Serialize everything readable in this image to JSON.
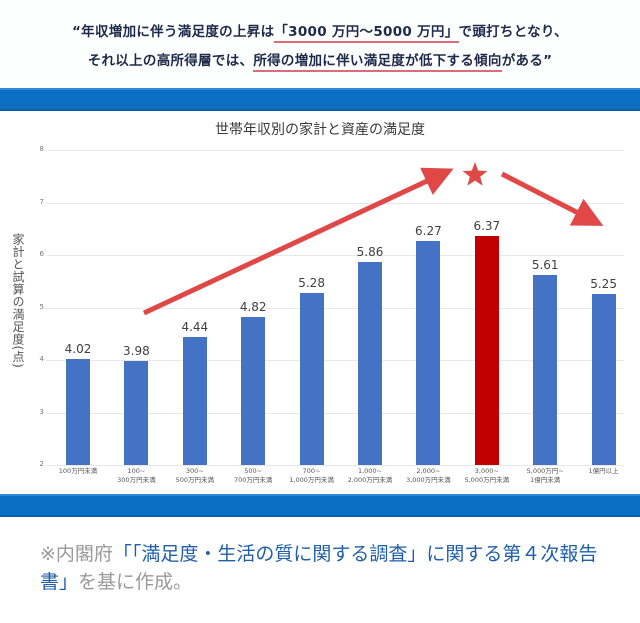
{
  "headline": {
    "line1_pre": "“年収増加に伴う満足度の上昇は",
    "line1_ul": "「3000 万円～5000 万円」",
    "line1_post": "で頭打ちとなり、",
    "line2_pre": "それ以上の高所得層では、",
    "line2_ul": "所得の増加に伴い満足度が低下する傾向",
    "line2_post": "がある”"
  },
  "colors": {
    "band": "#0a6fc2",
    "bar": "#4472c4",
    "highlight_bar": "#c00000",
    "arrow": "#e04848",
    "underline": "#e06a78"
  },
  "chart_data": {
    "type": "bar",
    "title": "世帯年収別の家計と資産の満足度",
    "xlabel": "",
    "ylabel": "家計と試算の満足度(点)",
    "ylim": [
      2,
      8
    ],
    "yticks": [
      "8",
      "7",
      "6",
      "5",
      "4",
      "3",
      "2"
    ],
    "grid": true,
    "categories": [
      [
        "100万円未満"
      ],
      [
        "100~",
        "300万円未満"
      ],
      [
        "300~",
        "500万円未満"
      ],
      [
        "500~",
        "700万円未満"
      ],
      [
        "700~",
        "1,000万円未満"
      ],
      [
        "1,000~",
        "2,000万円未満"
      ],
      [
        "2,000~",
        "3,000万円未満"
      ],
      [
        "3,000~",
        "5,000万円未満"
      ],
      [
        "5,000万円~",
        "1億円未満"
      ],
      [
        "1億円以上"
      ]
    ],
    "values": [
      4.02,
      3.98,
      4.44,
      4.82,
      5.28,
      5.86,
      6.27,
      6.37,
      5.61,
      5.25
    ],
    "value_labels": [
      "4.02",
      "3.98",
      "4.44",
      "4.82",
      "5.28",
      "5.86",
      "6.27",
      "6.37",
      "5.61",
      "5.25"
    ],
    "highlight_index": 7,
    "annotations": [
      "rising-arrow",
      "star",
      "falling-arrow"
    ]
  },
  "footnote": {
    "prefix": "※内閣府",
    "title": "「「満足度・生活の質に関する調査」に関する第４次報告書」",
    "suffix": "を基に作成。"
  }
}
